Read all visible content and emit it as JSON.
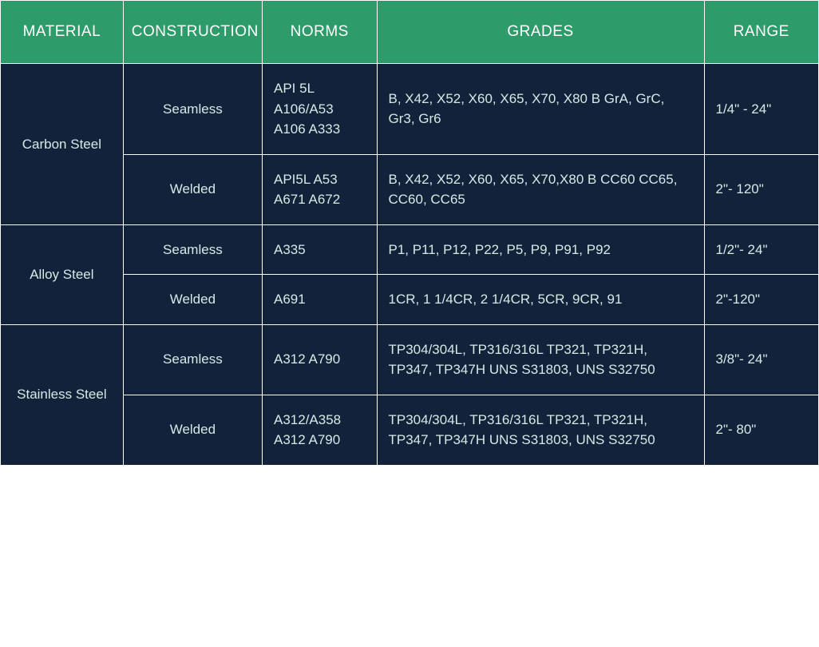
{
  "colors": {
    "header_bg": "#2e9b6a",
    "header_text": "#ffffff",
    "body_bg": "#12223a",
    "body_text": "#d7e9e6",
    "border": "#ffffff"
  },
  "table": {
    "type": "table",
    "col_widths_pct": [
      15,
      17,
      14,
      40,
      14
    ],
    "columns": [
      "MATERIAL",
      "CONSTRUCTION",
      "NORMS",
      "GRADES",
      "RANGE"
    ],
    "materials": [
      {
        "name": "Carbon Steel",
        "rows": [
          {
            "construction": "Seamless",
            "norms": "API 5L A106/A53 A106 A333",
            "grades": "B, X42, X52, X60, X65, X70, X80 B GrA, GrC, Gr3, Gr6",
            "range": "1/4\" - 24\""
          },
          {
            "construction": "Welded",
            "norms": "API5L A53 A671 A672",
            "grades": "B, X42, X52, X60, X65, X70,X80 B CC60 CC65, CC60, CC65",
            "range": "2\"- 120\""
          }
        ]
      },
      {
        "name": "Alloy Steel",
        "rows": [
          {
            "construction": "Seamless",
            "norms": "A335",
            "grades": "P1, P11, P12, P22, P5, P9, P91, P92",
            "range": "1/2\"- 24\""
          },
          {
            "construction": "Welded",
            "norms": "A691",
            "grades": "1CR, 1 1/4CR, 2 1/4CR, 5CR, 9CR, 91",
            "range": "2\"-120\""
          }
        ]
      },
      {
        "name": "Stainless Steel",
        "rows": [
          {
            "construction": "Seamless",
            "norms": "A312 A790",
            "grades": "TP304/304L, TP316/316L TP321, TP321H, TP347, TP347H UNS S31803, UNS S32750",
            "range": "3/8\"- 24\""
          },
          {
            "construction": "Welded",
            "norms": "A312/A358 A312 A790",
            "grades": "TP304/304L, TP316/316L TP321, TP321H, TP347, TP347H UNS S31803, UNS S32750",
            "range": "2\"- 80\""
          }
        ]
      }
    ]
  }
}
